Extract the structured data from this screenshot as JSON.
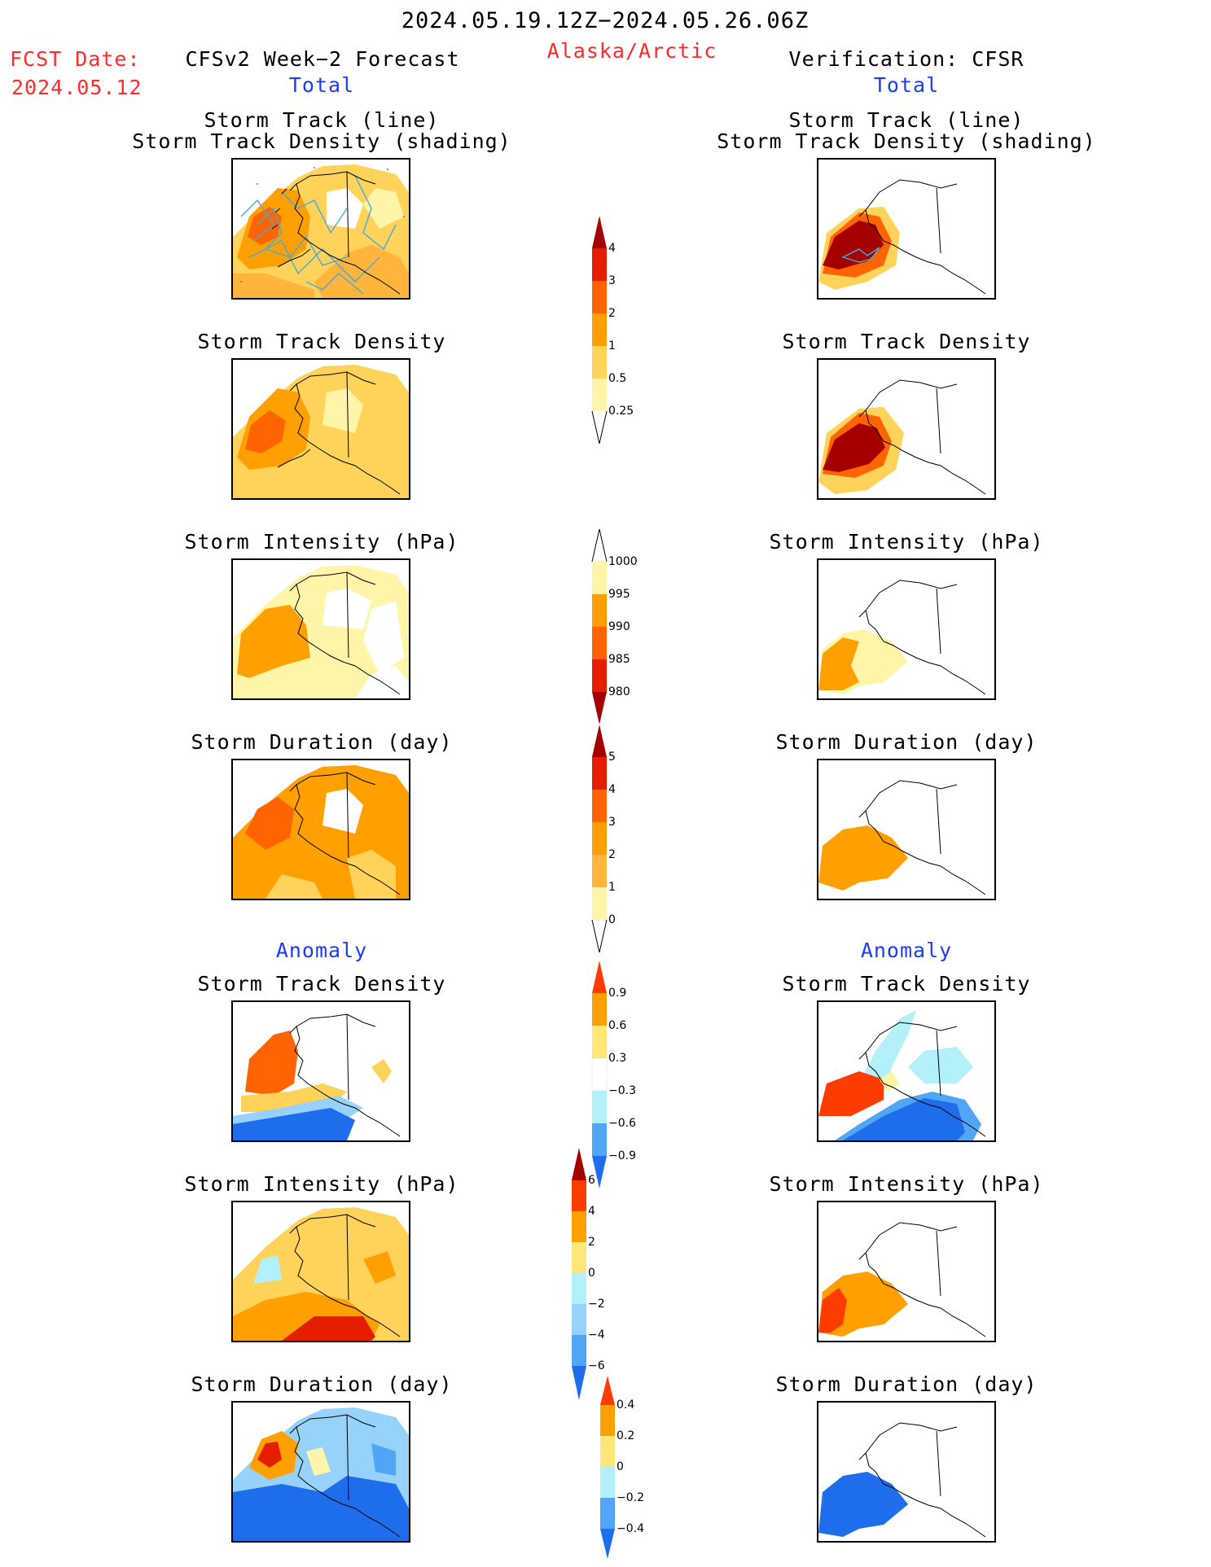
{
  "header": {
    "period": "2024.05.19.12Z−2024.05.26.06Z",
    "region": "Alaska/Arctic",
    "fcst_date_label": "FCST Date:",
    "fcst_date": "2024.05.12",
    "left_title": "CFSv2 Week−2 Forecast",
    "right_title": "Verification: CFSR",
    "total_label": "Total",
    "anomaly_label": "Anomaly"
  },
  "panel_titles": {
    "track_line": "Storm Track (line)",
    "track_shading": "Storm Track Density (shading)",
    "density": "Storm Track Density",
    "intensity": "Storm Intensity (hPa)",
    "duration": "Storm Duration (day)"
  },
  "colorbars": {
    "density": [
      "4",
      "3",
      "2",
      "1",
      "0.5",
      "0.25"
    ],
    "intensity": [
      "1000",
      "995",
      "990",
      "985",
      "980"
    ],
    "duration": [
      "5",
      "4",
      "3",
      "2",
      "1",
      "0"
    ],
    "anom_density": [
      "0.9",
      "0.6",
      "0.3",
      "−0.3",
      "−0.6",
      "−0.9"
    ],
    "anom_intensity": [
      "6",
      "4",
      "2",
      "0",
      "−2",
      "−4",
      "−6"
    ],
    "anom_duration": [
      "0.4",
      "0.2",
      "0",
      "−0.2",
      "−0.4"
    ]
  },
  "colors": {
    "title_red": "#ff2a2a",
    "label_blue": "#1a3cff",
    "yellow_light": "#fff5a8",
    "yellow": "#ffd25a",
    "orange_light": "#ffb43c",
    "orange": "#ffa000",
    "orange_dark": "#ff6400",
    "red": "#e61e00",
    "dark_red": "#a50000",
    "blue_light": "#b4f0fa",
    "blue": "#96d2fa",
    "blue_mid": "#50a5f5",
    "blue_dark": "#1e6eeb",
    "track_line": "#46aadc"
  }
}
